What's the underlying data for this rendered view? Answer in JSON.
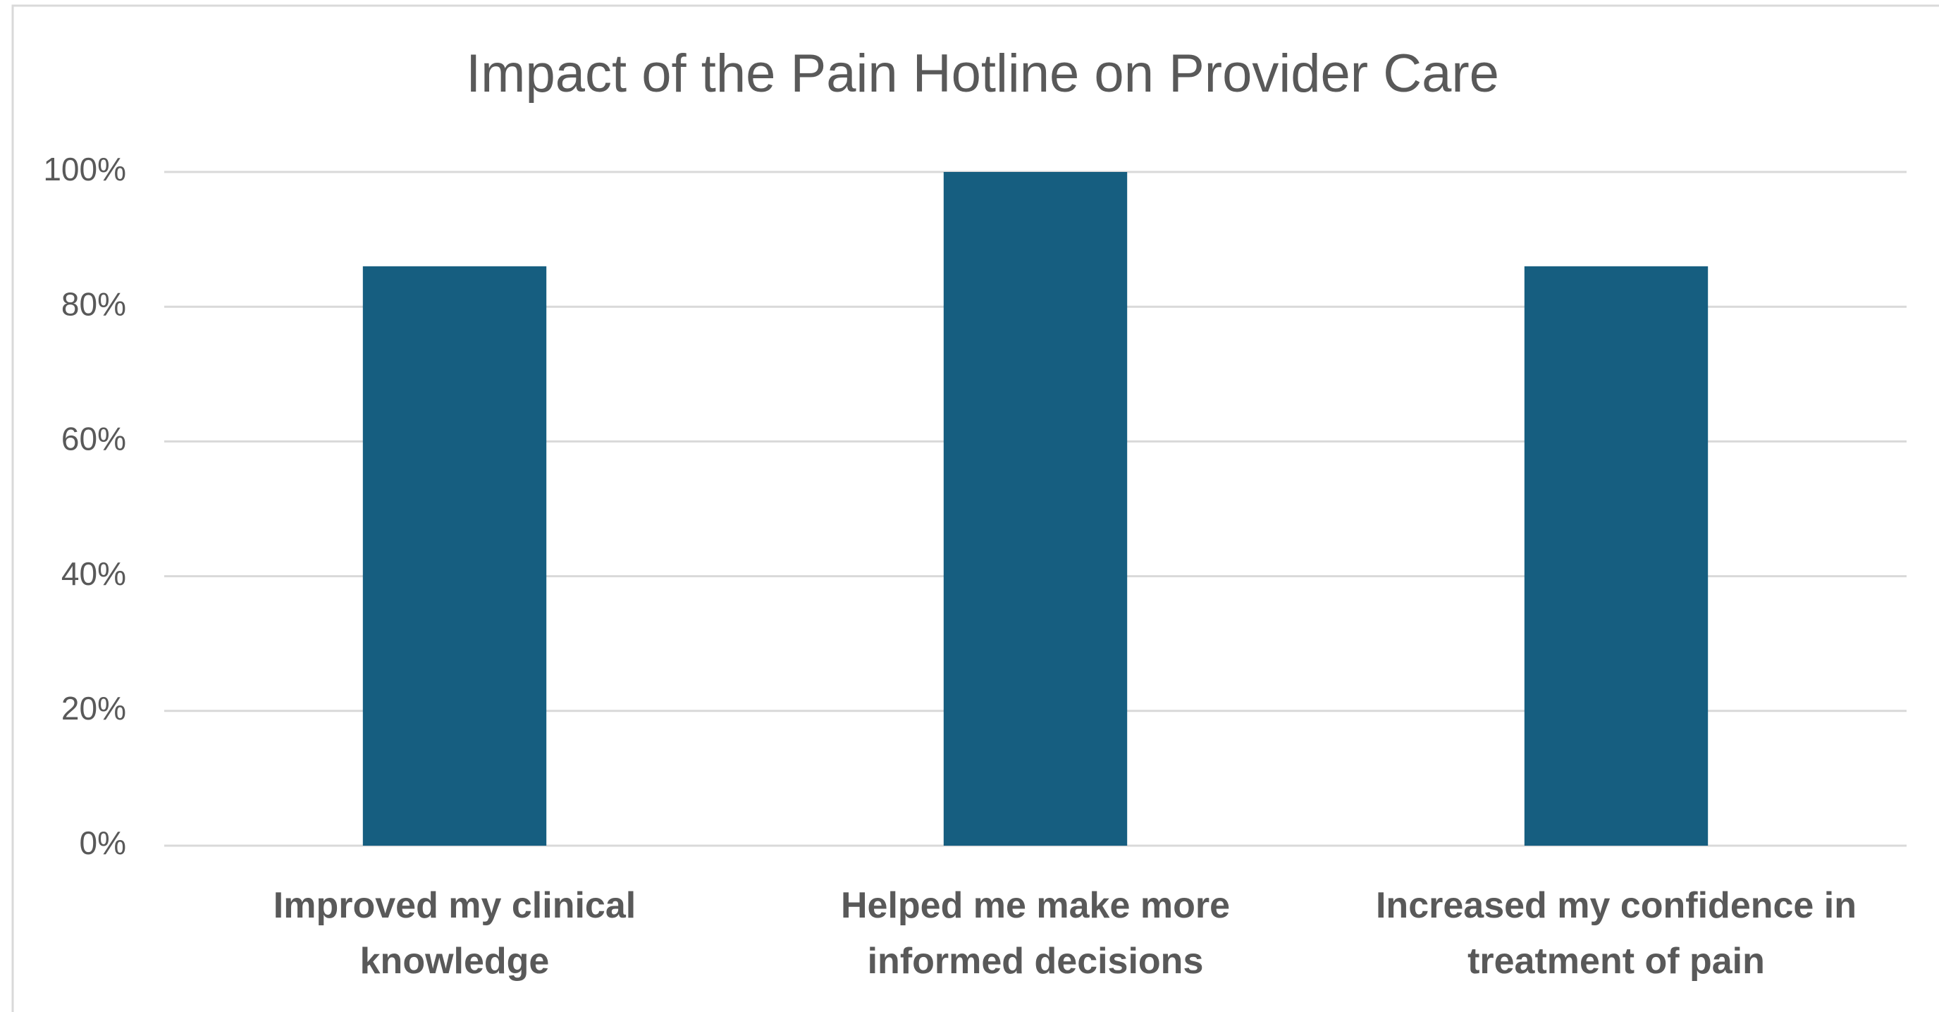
{
  "chart_data": {
    "type": "bar",
    "title": "Impact of the Pain Hotline on Provider Care",
    "categories": [
      "Improved my clinical\nknowledge",
      "Helped me make more\ninformed decisions",
      "Increased my confidence in\ntreatment of pain"
    ],
    "values": [
      86,
      100,
      86
    ],
    "color": "#165e80",
    "ylim": [
      0,
      100
    ],
    "yticks": [
      {
        "value": 0,
        "label": "0%"
      },
      {
        "value": 20,
        "label": "20%"
      },
      {
        "value": 40,
        "label": "40%"
      },
      {
        "value": 60,
        "label": "60%"
      },
      {
        "value": 80,
        "label": "80%"
      },
      {
        "value": 100,
        "label": "100%"
      }
    ],
    "grid": true
  }
}
